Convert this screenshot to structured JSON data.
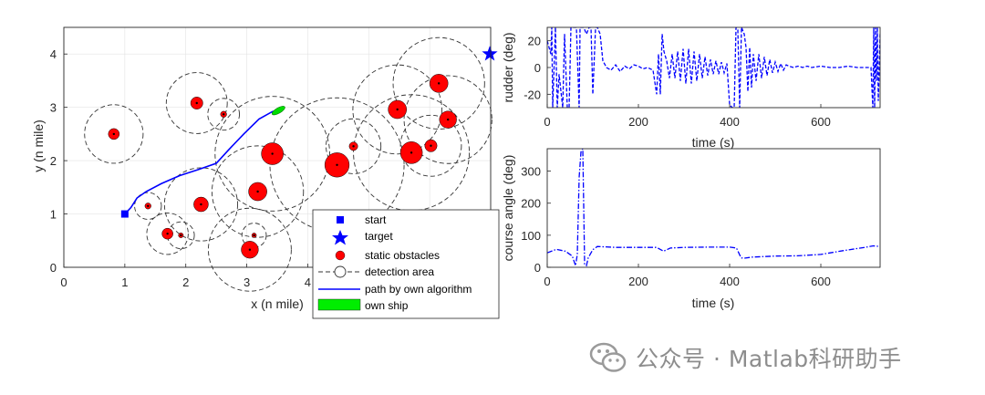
{
  "chart_data": [
    {
      "type": "scatter",
      "title": "",
      "xlabel": "x (n mile)",
      "ylabel": "y (n mile)",
      "xlim": [
        0,
        7
      ],
      "ylim": [
        0,
        4.5
      ],
      "xticks": [
        0,
        1,
        2,
        3,
        4
      ],
      "yticks": [
        0,
        1,
        2,
        3,
        4
      ],
      "grid": true,
      "start": {
        "x": 1.0,
        "y": 1.0
      },
      "target": {
        "x": 7.0,
        "y": 4.0
      },
      "obstacles": [
        {
          "x": 0.82,
          "y": 2.5,
          "r": 0.09,
          "d": 0.48
        },
        {
          "x": 2.18,
          "y": 3.08,
          "r": 0.1,
          "d": 0.5
        },
        {
          "x": 2.62,
          "y": 2.87,
          "r": 0.05,
          "d": 0.26
        },
        {
          "x": 1.38,
          "y": 1.15,
          "r": 0.05,
          "d": 0.22
        },
        {
          "x": 1.7,
          "y": 0.63,
          "r": 0.09,
          "d": 0.34
        },
        {
          "x": 1.92,
          "y": 0.6,
          "r": 0.04,
          "d": 0.22
        },
        {
          "x": 2.25,
          "y": 1.18,
          "r": 0.12,
          "d": 0.6
        },
        {
          "x": 3.18,
          "y": 1.42,
          "r": 0.15,
          "d": 0.75
        },
        {
          "x": 3.05,
          "y": 0.33,
          "r": 0.14,
          "d": 0.68
        },
        {
          "x": 3.12,
          "y": 0.6,
          "r": 0.03,
          "d": 0.2
        },
        {
          "x": 3.42,
          "y": 2.13,
          "r": 0.18,
          "d": 0.94
        },
        {
          "x": 4.48,
          "y": 1.92,
          "r": 0.2,
          "d": 1.1
        },
        {
          "x": 4.75,
          "y": 2.27,
          "r": 0.07,
          "d": 0.45
        },
        {
          "x": 5.47,
          "y": 2.96,
          "r": 0.15,
          "d": 0.73
        },
        {
          "x": 5.7,
          "y": 2.15,
          "r": 0.18,
          "d": 0.95
        },
        {
          "x": 6.15,
          "y": 3.45,
          "r": 0.15,
          "d": 0.75
        },
        {
          "x": 6.3,
          "y": 2.77,
          "r": 0.14,
          "d": 0.72
        },
        {
          "x": 6.02,
          "y": 2.28,
          "r": 0.1,
          "d": 0.5
        }
      ],
      "path": {
        "x": [
          1.0,
          1.1,
          1.2,
          1.35,
          1.6,
          1.9,
          2.2,
          2.5,
          2.7,
          2.95,
          3.2,
          3.42,
          3.6
        ],
        "y": [
          1.0,
          1.12,
          1.3,
          1.42,
          1.57,
          1.72,
          1.83,
          1.95,
          2.2,
          2.5,
          2.78,
          2.92,
          2.97
        ]
      },
      "own_ship": {
        "x": 3.52,
        "y": 2.94,
        "heading_deg": 30
      },
      "legend": {
        "position": "bottom-right",
        "entries": [
          "start",
          "target",
          "static obstacles",
          "detection area",
          "path by own algorithm",
          "own ship"
        ]
      }
    },
    {
      "type": "line",
      "title": "",
      "xlabel": "time (s)",
      "ylabel": "rudder (deg)",
      "xlim": [
        0,
        730
      ],
      "ylim": [
        -30,
        30
      ],
      "xticks": [
        0,
        200,
        400,
        600
      ],
      "yticks": [
        -20,
        0,
        20
      ],
      "grid": false,
      "series": [
        {
          "name": "rudder",
          "color": "#0000ff",
          "style": "dashed",
          "x": [
            0,
            8,
            10,
            12,
            18,
            22,
            26,
            34,
            38,
            44,
            48,
            52,
            60,
            64,
            70,
            72,
            76,
            80,
            86,
            92,
            96,
            100,
            106,
            110,
            116,
            122,
            130,
            140,
            150,
            160,
            170,
            180,
            190,
            200,
            210,
            220,
            232,
            240,
            244,
            248,
            252,
            256,
            262,
            268,
            274,
            280,
            286,
            292,
            298,
            304,
            310,
            316,
            322,
            328,
            334,
            340,
            346,
            352,
            358,
            364,
            370,
            376,
            382,
            388,
            394,
            400,
            406,
            410,
            414,
            418,
            422,
            426,
            432,
            436,
            440,
            444,
            448,
            452,
            458,
            464,
            470,
            476,
            482,
            488,
            494,
            500,
            506,
            512,
            518,
            524,
            530,
            540,
            550,
            560,
            570,
            580,
            600,
            620,
            640,
            660,
            680,
            700,
            710,
            714,
            716,
            718,
            720,
            722,
            724,
            726,
            730
          ],
          "y": [
            20,
            10,
            30,
            -30,
            30,
            -30,
            -5,
            -30,
            25,
            -30,
            -30,
            30,
            30,
            30,
            -30,
            30,
            30,
            30,
            25,
            30,
            30,
            -20,
            30,
            30,
            25,
            5,
            0,
            -2,
            2,
            -3,
            1,
            -1,
            2,
            1,
            -1,
            0,
            -2,
            -20,
            10,
            -20,
            25,
            12,
            5,
            -8,
            10,
            -8,
            12,
            -10,
            14,
            -12,
            14,
            -12,
            12,
            -10,
            10,
            -8,
            8,
            -6,
            6,
            -5,
            5,
            -5,
            4,
            -4,
            3,
            -28,
            -30,
            -30,
            30,
            28,
            -30,
            30,
            25,
            15,
            -18,
            15,
            -15,
            10,
            -10,
            10,
            -8,
            8,
            -6,
            6,
            -4,
            4,
            -3,
            3,
            -2,
            2,
            1,
            0,
            1,
            0,
            1,
            0,
            1,
            0,
            0,
            1,
            0,
            0,
            0,
            -30,
            30,
            -30,
            30,
            -10,
            30,
            -25,
            25
          ]
        }
      ]
    },
    {
      "type": "line",
      "title": "",
      "xlabel": "time (s)",
      "ylabel": "course angle (deg)",
      "xlim": [
        0,
        730
      ],
      "ylim": [
        0,
        370
      ],
      "xticks": [
        0,
        200,
        400,
        600
      ],
      "yticks": [
        0,
        100,
        200,
        300
      ],
      "grid": false,
      "series": [
        {
          "name": "course angle",
          "color": "#0000ff",
          "style": "dashdot",
          "x": [
            0,
            20,
            40,
            55,
            62,
            66,
            70,
            74,
            78,
            82,
            86,
            90,
            100,
            110,
            150,
            200,
            240,
            255,
            270,
            300,
            350,
            400,
            415,
            425,
            430,
            450,
            500,
            550,
            600,
            650,
            700,
            715,
            730
          ],
          "y": [
            45,
            56,
            50,
            35,
            5,
            40,
            280,
            360,
            370,
            10,
            5,
            30,
            55,
            65,
            62,
            62,
            62,
            50,
            60,
            62,
            63,
            63,
            60,
            30,
            28,
            32,
            35,
            36,
            40,
            52,
            63,
            67,
            65
          ]
        }
      ]
    }
  ],
  "watermark": {
    "text": "公众号 · Matlab科研助手",
    "icon": "wechat-logo-icon"
  }
}
